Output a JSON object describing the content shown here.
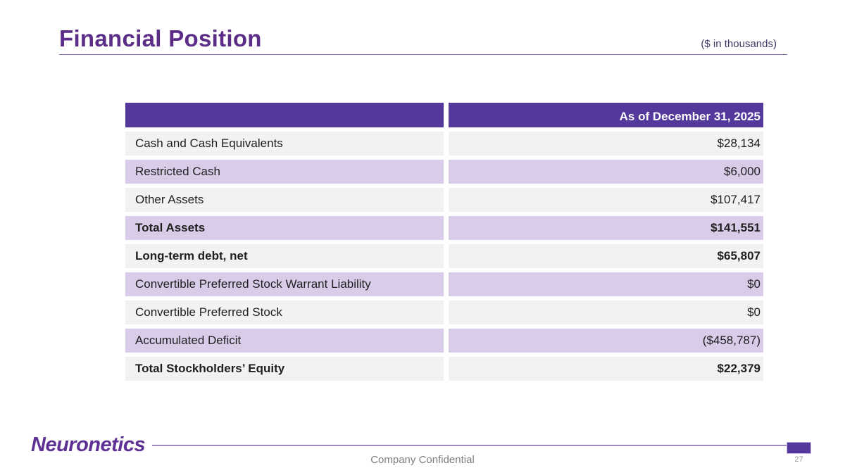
{
  "header": {
    "title": "Financial Position",
    "units_note": "($ in thousands)"
  },
  "table": {
    "header": {
      "label": "",
      "value": "As of December 31, 2025"
    },
    "rows": [
      {
        "label": "Cash and Cash Equivalents",
        "value": "$28,134",
        "emphasis": false
      },
      {
        "label": "Restricted Cash",
        "value": "$6,000",
        "emphasis": false
      },
      {
        "label": "Other Assets",
        "value": "$107,417",
        "emphasis": false
      },
      {
        "label": "Total Assets",
        "value": "$141,551",
        "emphasis": true
      },
      {
        "label": "Long-term debt, net",
        "value": "$65,807",
        "emphasis": true
      },
      {
        "label": "Convertible Preferred Stock Warrant Liability",
        "value": "$0",
        "emphasis": false
      },
      {
        "label": "Convertible Preferred Stock",
        "value": "$0",
        "emphasis": false
      },
      {
        "label": "Accumulated Deficit",
        "value": "($458,787)",
        "emphasis": false
      },
      {
        "label": "Total Stockholders’ Equity",
        "value": "$22,379",
        "emphasis": true
      }
    ]
  },
  "footer": {
    "logo": "Neuronetics",
    "confidential": "Company Confidential",
    "page_number": "27"
  },
  "colors": {
    "header_purple": "#55389b",
    "row_purple": "#d9cce9",
    "row_gray": "#f2f2f2",
    "title_purple": "#5b2d87",
    "rule_purple": "#8d6cae",
    "note_color": "#403665",
    "line_purple": "#a18dc2",
    "logo_purple": "#5f3195",
    "text_dark": "#1f1f1f",
    "footer_gray": "#7f7f7f"
  }
}
